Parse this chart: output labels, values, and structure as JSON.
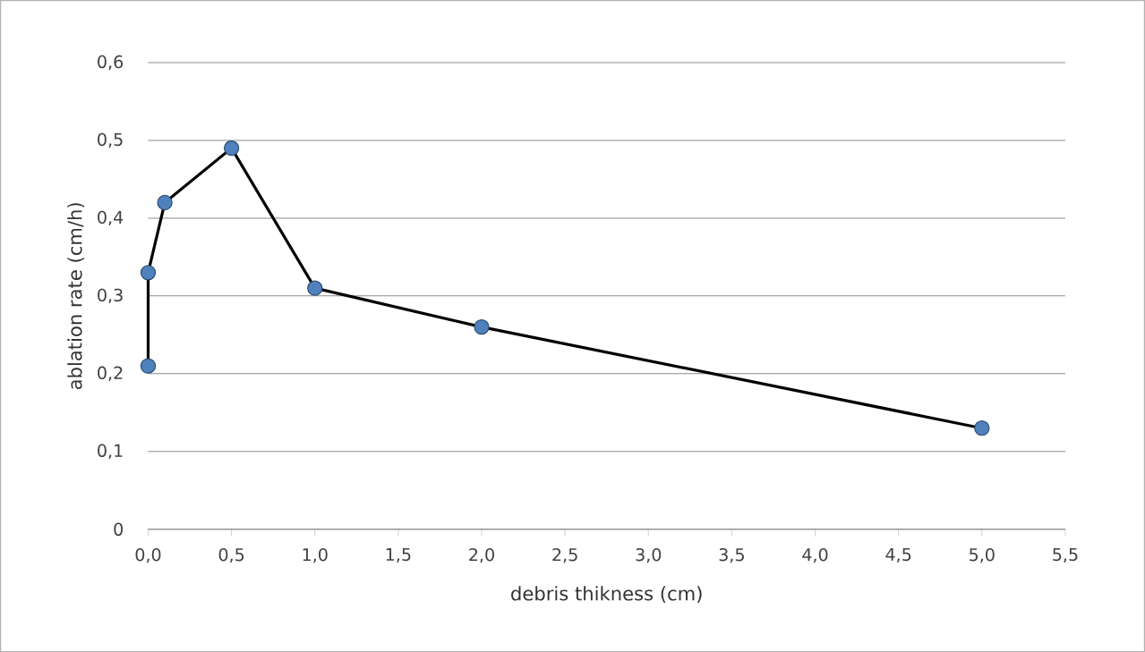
{
  "chart_data": {
    "type": "line",
    "xlabel": "debris thikness (cm)",
    "ylabel": "ablation rate (cm/h)",
    "x": [
      0,
      0,
      0.1,
      0.5,
      1,
      2,
      5
    ],
    "series": [
      {
        "type": "line",
        "marker": "circle",
        "color": "#4f81bd",
        "values": [
          0.21,
          0.33,
          0.42,
          0.49,
          0.31,
          0.26,
          0.13
        ]
      }
    ],
    "xlim": [
      0,
      5.5
    ],
    "ylim": [
      0,
      0.6
    ],
    "xticks": [
      {
        "value": 0,
        "label": "0,0"
      },
      {
        "value": 0.5,
        "label": "0,5"
      },
      {
        "value": 1,
        "label": "1,0"
      },
      {
        "value": 1.5,
        "label": "1,5"
      },
      {
        "value": 2,
        "label": "2,0"
      },
      {
        "value": 2.5,
        "label": "2,5"
      },
      {
        "value": 3,
        "label": "3,0"
      },
      {
        "value": 3.5,
        "label": "3,5"
      },
      {
        "value": 4,
        "label": "4,0"
      },
      {
        "value": 4.5,
        "label": "4,5"
      },
      {
        "value": 5,
        "label": "5,0"
      },
      {
        "value": 5.5,
        "label": "5,5"
      }
    ],
    "yticks": [
      0,
      {
        "value": 0.1,
        "label": "0,1"
      },
      {
        "value": 0.2,
        "label": "0,2"
      },
      {
        "value": 0.3,
        "label": "0,3"
      },
      {
        "value": 0.4,
        "label": "0,4"
      },
      {
        "value": 0.5,
        "label": "0,5"
      },
      {
        "value": 0.6,
        "label": "0,6"
      }
    ],
    "grid": "y",
    "line_style": "solid"
  }
}
